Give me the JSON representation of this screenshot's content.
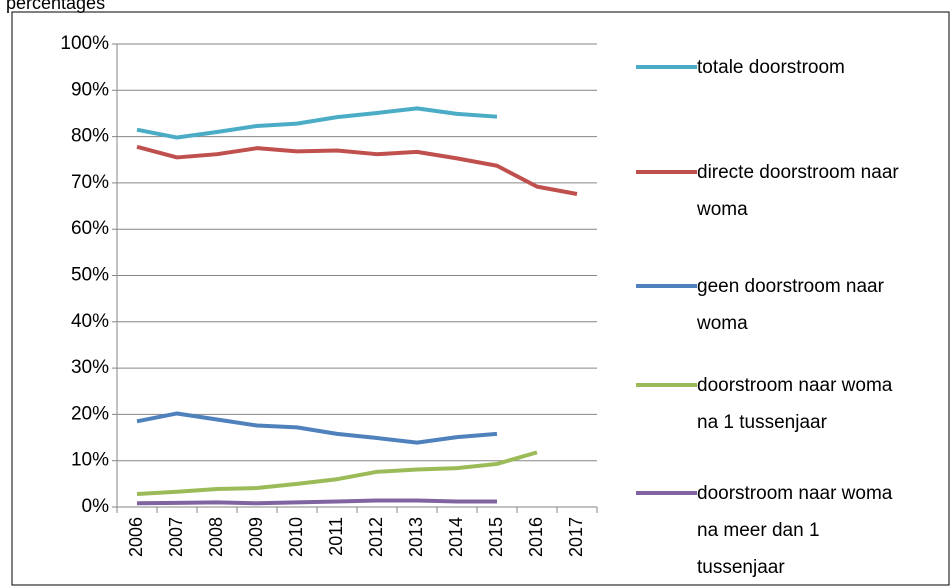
{
  "chart_data": {
    "type": "line",
    "title": "percentages",
    "categories": [
      "2006",
      "2007",
      "2008",
      "2009",
      "2010",
      "2011",
      "2012",
      "2013",
      "2014",
      "2015",
      "2016",
      "2017"
    ],
    "series": [
      {
        "name": "totale doorstroom",
        "color": "#4bacc6",
        "values": [
          81.5,
          79.8,
          81.0,
          82.3,
          82.8,
          84.2,
          85.1,
          86.1,
          84.9,
          84.3,
          null,
          null
        ]
      },
      {
        "name": "directe doorstroom naar woma",
        "color": "#c0504d",
        "values": [
          77.8,
          75.5,
          76.2,
          77.5,
          76.8,
          77.0,
          76.2,
          76.7,
          75.3,
          73.7,
          69.2,
          67.6
        ]
      },
      {
        "name": "geen doorstroom naar woma",
        "color": "#4f81bd",
        "values": [
          18.5,
          20.2,
          18.9,
          17.6,
          17.2,
          15.8,
          14.9,
          13.9,
          15.1,
          15.8,
          null,
          null
        ]
      },
      {
        "name": "doorstroom naar woma na 1 tussenjaar",
        "color": "#9bbb59",
        "values": [
          2.8,
          3.3,
          3.9,
          4.1,
          5.0,
          6.0,
          7.6,
          8.1,
          8.4,
          9.3,
          11.8,
          null
        ]
      },
      {
        "name": "doorstroom naar woma na meer dan 1 tussenjaar",
        "color": "#8064a2",
        "values": [
          0.8,
          0.9,
          1.0,
          0.8,
          1.0,
          1.2,
          1.4,
          1.4,
          1.2,
          1.2,
          null,
          null
        ]
      }
    ],
    "ylim": [
      0,
      100
    ],
    "yticks": [
      {
        "value": 0,
        "label": "0%"
      },
      {
        "value": 10,
        "label": "10%"
      },
      {
        "value": 20,
        "label": "20%"
      },
      {
        "value": 30,
        "label": "30%"
      },
      {
        "value": 40,
        "label": "40%"
      },
      {
        "value": 50,
        "label": "50%"
      },
      {
        "value": 60,
        "label": "60%"
      },
      {
        "value": 70,
        "label": "70%"
      },
      {
        "value": 80,
        "label": "80%"
      },
      {
        "value": 90,
        "label": "90%"
      },
      {
        "value": 100,
        "label": "100%"
      }
    ],
    "grid": true,
    "legend": "right"
  }
}
